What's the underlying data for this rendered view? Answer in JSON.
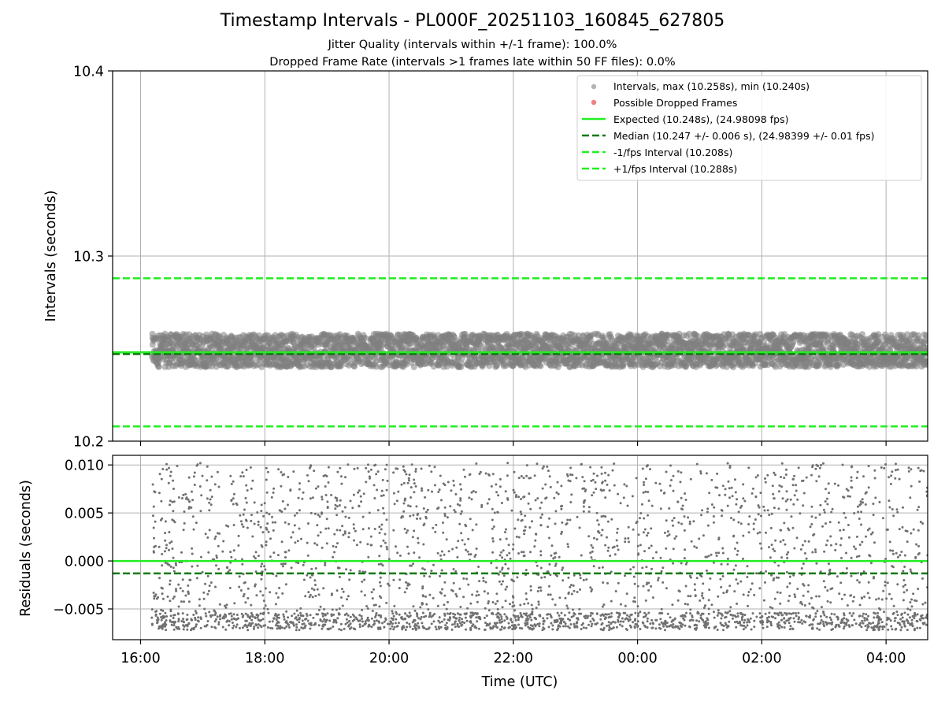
{
  "chart_data": [
    {
      "type": "scatter",
      "title": "Timestamp Intervals - PL000F_20251103_160845_627805",
      "subtitle_lines": [
        "Jitter Quality (intervals within +/-1 frame): 100.0%",
        "Dropped Frame Rate (intervals >1 frames late within 50 FF files): 0.0%"
      ],
      "ylabel": "Intervals (seconds)",
      "ylim": [
        10.2,
        10.4
      ],
      "y_ticks": [
        "10.2",
        "10.3",
        "10.4"
      ],
      "x_ticks": [
        "16:00",
        "18:00",
        "20:00",
        "22:00",
        "00:00",
        "02:00",
        "04:00"
      ],
      "xlim_hours": [
        15.55,
        28.67
      ],
      "data_start_hour": 16.18,
      "grid": true,
      "legend_position": "top-right",
      "series": [
        {
          "name": "Intervals, max (10.258s), min (10.240s)",
          "kind": "points",
          "color": "#808080",
          "y_range": [
            10.24,
            10.258
          ]
        },
        {
          "name": "Possible Dropped Frames",
          "kind": "points",
          "color": "#f08080",
          "count": 0
        },
        {
          "name": "Expected (10.248s), (24.98098 fps)",
          "kind": "hline",
          "style": "solid",
          "color": "#22ee22",
          "y": 10.248
        },
        {
          "name": "Median (10.247 +/- 0.006 s), (24.98399 +/- 0.01 fps)",
          "kind": "hline",
          "style": "dashed",
          "color": "#0a7a0a",
          "y": 10.247
        },
        {
          "name": "-1/fps Interval (10.208s)",
          "kind": "hline",
          "style": "dashed",
          "color": "#22ee22",
          "y": 10.208
        },
        {
          "name": "+1/fps Interval (10.288s)",
          "kind": "hline",
          "style": "dashed",
          "color": "#22ee22",
          "y": 10.288
        }
      ]
    },
    {
      "type": "scatter",
      "ylabel": "Residuals (seconds)",
      "xlabel": "Time (UTC)",
      "ylim": [
        -0.0082,
        0.011
      ],
      "y_ticks": [
        "−0.005",
        "0.000",
        "0.005",
        "0.010"
      ],
      "y_tick_values": [
        -0.005,
        0.0,
        0.005,
        0.01
      ],
      "grid": true,
      "series": [
        {
          "name": "residuals",
          "kind": "points",
          "color": "#707070",
          "y_range": [
            -0.0072,
            0.0102
          ]
        },
        {
          "name": "expected",
          "kind": "hline",
          "style": "solid",
          "color": "#22ee22",
          "y": 0.0
        },
        {
          "name": "median",
          "kind": "hline",
          "style": "dashed",
          "color": "#0a7a0a",
          "y": -0.0013
        }
      ]
    }
  ]
}
